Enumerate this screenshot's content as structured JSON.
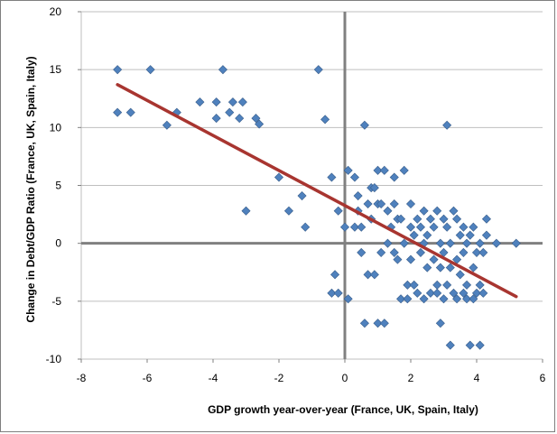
{
  "chart_data": {
    "type": "scatter",
    "title": "",
    "xlabel": "GDP growth year-over-year (France, UK, Spain, Italy)",
    "ylabel": "Change in Debt/GDP Ratio (France, UK, Spain, Italy)",
    "xlim": [
      -8,
      6
    ],
    "ylim": [
      -10,
      20
    ],
    "xticks": [
      -8,
      -6,
      -4,
      -2,
      0,
      2,
      4,
      6
    ],
    "yticks": [
      -10,
      -5,
      0,
      5,
      10,
      15,
      20
    ],
    "x_tick_labels": [
      "-8",
      "-6",
      "-4",
      "-2",
      "0",
      "2",
      "4",
      "6"
    ],
    "y_tick_labels": [
      "-10",
      "-5",
      "0",
      "5",
      "10",
      "15",
      "20"
    ],
    "grid": "horizontal major gridlines",
    "legend": "none",
    "marker_color": "#4f81bd",
    "trendline_color": "#a83530",
    "axis_line_color": "#808080",
    "trendline": {
      "type": "linear",
      "x": [
        -6.9,
        5.2
      ],
      "y": [
        13.7,
        -4.6
      ]
    },
    "series": [
      {
        "points": [
          [
            -6.9,
            15.0
          ],
          [
            -6.9,
            11.3
          ],
          [
            -6.5,
            11.3
          ],
          [
            -5.9,
            15.0
          ],
          [
            -5.4,
            10.2
          ],
          [
            -5.1,
            11.3
          ],
          [
            -4.4,
            12.2
          ],
          [
            -3.9,
            10.8
          ],
          [
            -3.9,
            12.2
          ],
          [
            -3.7,
            15.0
          ],
          [
            -3.5,
            11.3
          ],
          [
            -3.4,
            12.2
          ],
          [
            -3.2,
            10.8
          ],
          [
            -3.1,
            12.2
          ],
          [
            -2.7,
            10.8
          ],
          [
            -2.6,
            10.3
          ],
          [
            -3.0,
            2.8
          ],
          [
            -2.0,
            5.7
          ],
          [
            -1.7,
            2.8
          ],
          [
            -1.3,
            4.1
          ],
          [
            -1.2,
            1.4
          ],
          [
            -0.8,
            15.0
          ],
          [
            -0.6,
            10.7
          ],
          [
            -0.4,
            5.7
          ],
          [
            -0.4,
            -4.3
          ],
          [
            -0.3,
            -2.7
          ],
          [
            -0.2,
            -4.3
          ],
          [
            -0.2,
            2.8
          ],
          [
            0.0,
            1.4
          ],
          [
            0.1,
            6.3
          ],
          [
            0.1,
            -4.8
          ],
          [
            0.3,
            1.4
          ],
          [
            0.3,
            5.7
          ],
          [
            0.4,
            2.8
          ],
          [
            0.4,
            4.1
          ],
          [
            0.5,
            1.4
          ],
          [
            0.5,
            -0.8
          ],
          [
            0.6,
            10.2
          ],
          [
            0.6,
            -6.9
          ],
          [
            0.7,
            3.4
          ],
          [
            0.7,
            -2.7
          ],
          [
            0.8,
            2.1
          ],
          [
            0.8,
            4.8
          ],
          [
            0.9,
            -2.7
          ],
          [
            0.9,
            4.8
          ],
          [
            1.0,
            3.4
          ],
          [
            1.0,
            -6.9
          ],
          [
            1.0,
            6.3
          ],
          [
            1.1,
            3.4
          ],
          [
            1.1,
            -0.8
          ],
          [
            1.2,
            6.3
          ],
          [
            1.2,
            -6.9
          ],
          [
            1.3,
            0.0
          ],
          [
            1.3,
            2.8
          ],
          [
            1.4,
            1.4
          ],
          [
            1.5,
            3.4
          ],
          [
            1.5,
            -0.8
          ],
          [
            1.5,
            5.7
          ],
          [
            1.6,
            2.1
          ],
          [
            1.6,
            -1.4
          ],
          [
            1.7,
            -4.8
          ],
          [
            1.7,
            2.1
          ],
          [
            1.8,
            0.0
          ],
          [
            1.8,
            6.3
          ],
          [
            1.9,
            -3.6
          ],
          [
            1.9,
            -4.8
          ],
          [
            2.0,
            -1.4
          ],
          [
            2.0,
            1.4
          ],
          [
            2.0,
            3.4
          ],
          [
            2.1,
            -3.6
          ],
          [
            2.1,
            0.7
          ],
          [
            2.2,
            2.1
          ],
          [
            2.2,
            -4.3
          ],
          [
            2.3,
            -0.8
          ],
          [
            2.3,
            1.4
          ],
          [
            2.4,
            0.0
          ],
          [
            2.4,
            2.8
          ],
          [
            2.4,
            -4.8
          ],
          [
            2.5,
            -2.1
          ],
          [
            2.5,
            0.7
          ],
          [
            2.6,
            -4.3
          ],
          [
            2.6,
            2.1
          ],
          [
            2.7,
            1.4
          ],
          [
            2.7,
            -1.4
          ],
          [
            2.8,
            2.8
          ],
          [
            2.8,
            -4.3
          ],
          [
            2.8,
            -3.6
          ],
          [
            2.9,
            -2.1
          ],
          [
            2.9,
            0.0
          ],
          [
            2.9,
            -6.9
          ],
          [
            3.0,
            2.1
          ],
          [
            3.0,
            -0.8
          ],
          [
            3.0,
            -4.8
          ],
          [
            3.1,
            10.2
          ],
          [
            3.1,
            1.4
          ],
          [
            3.1,
            -3.6
          ],
          [
            3.2,
            -2.1
          ],
          [
            3.2,
            0.0
          ],
          [
            3.2,
            -8.8
          ],
          [
            3.3,
            2.8
          ],
          [
            3.3,
            -4.3
          ],
          [
            3.4,
            -1.4
          ],
          [
            3.4,
            2.1
          ],
          [
            3.4,
            -4.8
          ],
          [
            3.5,
            0.7
          ],
          [
            3.5,
            -2.7
          ],
          [
            3.6,
            -0.8
          ],
          [
            3.6,
            1.4
          ],
          [
            3.6,
            -4.3
          ],
          [
            3.7,
            -3.6
          ],
          [
            3.7,
            0.0
          ],
          [
            3.7,
            -4.8
          ],
          [
            3.8,
            -8.8
          ],
          [
            3.8,
            0.7
          ],
          [
            3.9,
            -2.1
          ],
          [
            3.9,
            -4.8
          ],
          [
            3.9,
            1.4
          ],
          [
            4.0,
            -0.8
          ],
          [
            4.0,
            -4.3
          ],
          [
            4.1,
            0.0
          ],
          [
            4.1,
            -8.8
          ],
          [
            4.1,
            -3.6
          ],
          [
            4.2,
            -0.8
          ],
          [
            4.2,
            -4.3
          ],
          [
            4.3,
            0.7
          ],
          [
            4.3,
            2.1
          ],
          [
            4.6,
            0.0
          ],
          [
            5.2,
            0.0
          ]
        ]
      }
    ]
  }
}
